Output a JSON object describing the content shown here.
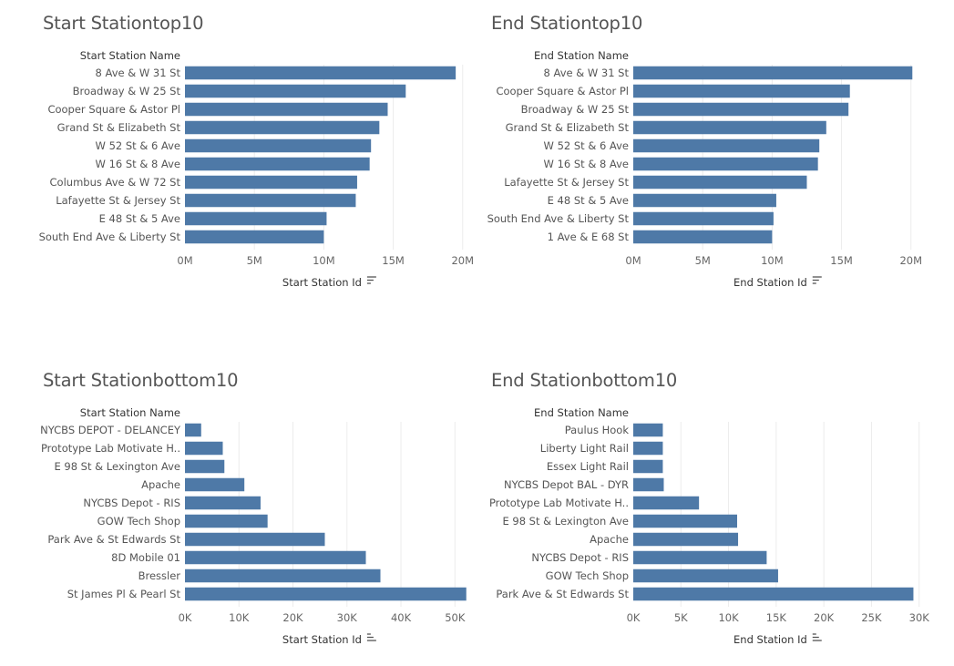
{
  "chart_data": [
    {
      "type": "bar",
      "orientation": "horizontal",
      "title": "Start Stationtop10",
      "category_header": "Start Station Name",
      "xlabel": "Start Station Id",
      "categories": [
        "8 Ave & W 31 St",
        "Broadway & W 25 St",
        "Cooper Square & Astor Pl",
        "Grand St & Elizabeth St",
        "W 52 St & 6 Ave",
        "W 16 St & 8 Ave",
        "Columbus Ave & W 72 St",
        "Lafayette St & Jersey St",
        "E 48 St & 5 Ave",
        "South End Ave & Liberty St"
      ],
      "values": [
        19500000,
        15900000,
        14600000,
        14000000,
        13400000,
        13300000,
        12400000,
        12300000,
        10200000,
        10000000
      ],
      "xlim": [
        0,
        21000000
      ],
      "ticks": [
        0,
        5000000,
        10000000,
        15000000,
        20000000
      ],
      "tick_labels": [
        "0M",
        "5M",
        "10M",
        "15M",
        "20M"
      ],
      "sort_icon": "sort-descending-icon"
    },
    {
      "type": "bar",
      "orientation": "horizontal",
      "title": "End Stationtop10",
      "category_header": "End Station Name",
      "xlabel": "End Station Id",
      "categories": [
        "8 Ave & W 31 St",
        "Cooper Square & Astor Pl",
        "Broadway & W 25 St",
        "Grand St & Elizabeth St",
        "W 52 St & 6 Ave",
        "W 16 St & 8 Ave",
        "Lafayette St & Jersey St",
        "E 48 St & 5 Ave",
        "South End Ave & Liberty St",
        "1 Ave & E 68 St"
      ],
      "values": [
        20100000,
        15600000,
        15500000,
        13900000,
        13400000,
        13300000,
        12500000,
        10300000,
        10100000,
        10000000
      ],
      "xlim": [
        0,
        21000000
      ],
      "ticks": [
        0,
        5000000,
        10000000,
        15000000,
        20000000
      ],
      "tick_labels": [
        "0M",
        "5M",
        "10M",
        "15M",
        "20M"
      ],
      "sort_icon": "sort-descending-icon"
    },
    {
      "type": "bar",
      "orientation": "horizontal",
      "title": "Start Stationbottom10",
      "category_header": "Start Station Name",
      "xlabel": "Start Station Id",
      "categories": [
        "NYCBS DEPOT - DELANCEY",
        "Prototype Lab Motivate H..",
        "E 98 St & Lexington Ave",
        "Apache",
        "NYCBS Depot - RIS",
        "GOW Tech Shop",
        "Park Ave & St Edwards St",
        "8D Mobile 01",
        "Bressler",
        "St James Pl & Pearl St"
      ],
      "values": [
        3000,
        7000,
        7300,
        11000,
        14000,
        15300,
        25900,
        33500,
        36200,
        52100
      ],
      "xlim": [
        0,
        54000
      ],
      "ticks": [
        0,
        10000,
        20000,
        30000,
        40000,
        50000
      ],
      "tick_labels": [
        "0K",
        "10K",
        "20K",
        "30K",
        "40K",
        "50K"
      ],
      "sort_icon": "sort-ascending-icon"
    },
    {
      "type": "bar",
      "orientation": "horizontal",
      "title": "End Stationbottom10",
      "category_header": "End Station Name",
      "xlabel": "End Station Id",
      "categories": [
        "Paulus Hook",
        "Liberty Light Rail",
        "Essex Light Rail",
        "NYCBS Depot BAL - DYR",
        "Prototype Lab Motivate H..",
        "E 98 St & Lexington Ave",
        "Apache",
        "NYCBS Depot - RIS",
        "GOW Tech Shop",
        "Park Ave & St Edwards St"
      ],
      "values": [
        3100,
        3100,
        3100,
        3200,
        6900,
        10900,
        11000,
        14000,
        15200,
        29400
      ],
      "xlim": [
        0,
        30600
      ],
      "ticks": [
        0,
        5000,
        10000,
        15000,
        20000,
        25000,
        30000
      ],
      "tick_labels": [
        "0K",
        "5K",
        "10K",
        "15K",
        "20K",
        "25K",
        "30K"
      ],
      "sort_icon": "sort-ascending-icon"
    }
  ]
}
